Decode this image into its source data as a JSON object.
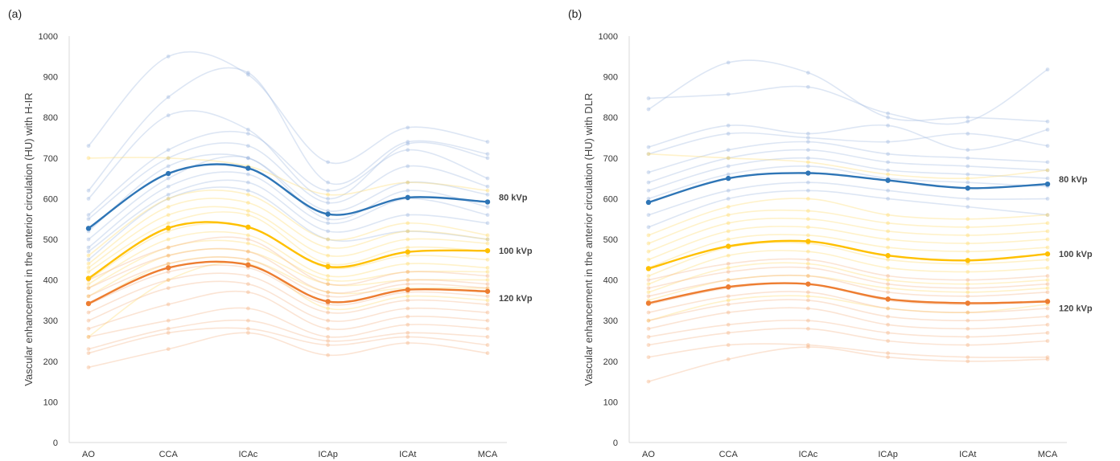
{
  "chart_data": [
    {
      "type": "line",
      "panel_label": "(a)",
      "ylabel": "Vascular enhancement in the anterior circulation (HU) with H-IR",
      "categories": [
        "AO",
        "CCA",
        "ICAc",
        "ICAp",
        "ICAt",
        "MCA"
      ],
      "ylim": [
        0,
        1000
      ],
      "yticks": [
        0,
        100,
        200,
        300,
        400,
        500,
        600,
        700,
        800,
        900,
        1000
      ],
      "grid": false,
      "series": [
        {
          "name": "80 kVp",
          "color": "#2e75b6",
          "values": [
            527,
            662,
            675,
            562,
            603,
            592
          ]
        },
        {
          "name": "100 kVp",
          "color": "#ffc000",
          "values": [
            404,
            528,
            530,
            433,
            469,
            472
          ]
        },
        {
          "name": "120 kVp",
          "color": "#ed7d31",
          "values": [
            342,
            430,
            437,
            347,
            376,
            372
          ]
        }
      ],
      "background_groups": [
        {
          "color": "#9db7df",
          "lines": [
            [
              730,
              950,
              905,
              690,
              775,
              740
            ],
            [
              620,
              850,
              910,
              640,
              740,
              710
            ],
            [
              600,
              805,
              770,
              600,
              735,
              700
            ],
            [
              560,
              720,
              760,
              620,
              720,
              650
            ],
            [
              550,
              700,
              730,
              590,
              680,
              630
            ],
            [
              520,
              680,
              700,
              570,
              640,
              610
            ],
            [
              500,
              650,
              700,
              550,
              620,
              580
            ],
            [
              480,
              630,
              660,
              540,
              600,
              560
            ],
            [
              470,
              610,
              640,
              520,
              560,
              540
            ],
            [
              450,
              600,
              620,
              500,
              520,
              500
            ]
          ]
        },
        {
          "color": "#ffd966",
          "lines": [
            [
              700,
              700,
              680,
              610,
              640,
              620
            ],
            [
              460,
              600,
              610,
              500,
              540,
              510
            ],
            [
              440,
              580,
              590,
              480,
              520,
              500
            ],
            [
              430,
              560,
              570,
              460,
              500,
              490
            ],
            [
              420,
              540,
              560,
              440,
              480,
              470
            ],
            [
              400,
              520,
              530,
              430,
              460,
              450
            ],
            [
              390,
              500,
              510,
              410,
              440,
              430
            ],
            [
              380,
              480,
              490,
              400,
              420,
              420
            ],
            [
              360,
              460,
              470,
              390,
              400,
              400
            ],
            [
              340,
              440,
              450,
              370,
              380,
              380
            ],
            [
              260,
              400,
              440,
              330,
              360,
              350
            ]
          ]
        },
        {
          "color": "#f4b183",
          "lines": [
            [
              400,
              480,
              500,
              390,
              420,
              410
            ],
            [
              380,
              460,
              470,
              370,
              400,
              390
            ],
            [
              360,
              440,
              450,
              360,
              390,
              380
            ],
            [
              340,
              420,
              430,
              340,
              370,
              360
            ],
            [
              320,
              400,
              410,
              320,
              350,
              340
            ],
            [
              300,
              380,
              390,
              300,
              330,
              320
            ],
            [
              280,
              340,
              370,
              280,
              310,
              300
            ],
            [
              260,
              300,
              330,
              260,
              290,
              280
            ],
            [
              230,
              280,
              300,
              250,
              270,
              260
            ],
            [
              220,
              270,
              280,
              240,
              260,
              240
            ],
            [
              185,
              230,
              270,
              215,
              245,
              220
            ]
          ]
        }
      ]
    },
    {
      "type": "line",
      "panel_label": "(b)",
      "ylabel": "Vascular enhancement in the anterior circulation (HU) with DLR",
      "categories": [
        "AO",
        "CCA",
        "ICAc",
        "ICAp",
        "ICAt",
        "MCA"
      ],
      "ylim": [
        0,
        1000
      ],
      "yticks": [
        0,
        100,
        200,
        300,
        400,
        500,
        600,
        700,
        800,
        900,
        1000
      ],
      "grid": false,
      "series": [
        {
          "name": "80 kVp",
          "color": "#2e75b6",
          "values": [
            591,
            650,
            663,
            645,
            626,
            636
          ]
        },
        {
          "name": "100 kVp",
          "color": "#ffc000",
          "values": [
            428,
            483,
            495,
            460,
            448,
            464
          ]
        },
        {
          "name": "120 kVp",
          "color": "#ed7d31",
          "values": [
            343,
            383,
            390,
            353,
            343,
            347
          ]
        }
      ],
      "background_groups": [
        {
          "color": "#9db7df",
          "lines": [
            [
              847,
              857,
              875,
              810,
              790,
              918
            ],
            [
              820,
              935,
              910,
              800,
              800,
              790
            ],
            [
              727,
              780,
              760,
              780,
              720,
              770
            ],
            [
              710,
              760,
              750,
              740,
              760,
              730
            ],
            [
              665,
              720,
              740,
              710,
              700,
              690
            ],
            [
              640,
              700,
              720,
              690,
              680,
              670
            ],
            [
              620,
              680,
              700,
              670,
              660,
              650
            ],
            [
              600,
              660,
              680,
              650,
              640,
              630
            ],
            [
              560,
              620,
              640,
              620,
              600,
              600
            ],
            [
              530,
              600,
              620,
              600,
              580,
              560
            ]
          ]
        },
        {
          "color": "#ffd966",
          "lines": [
            [
              710,
              700,
              690,
              660,
              650,
              670
            ],
            [
              510,
              580,
              600,
              560,
              550,
              560
            ],
            [
              490,
              560,
              570,
              540,
              530,
              540
            ],
            [
              470,
              540,
              550,
              520,
              510,
              520
            ],
            [
              450,
              520,
              530,
              500,
              490,
              500
            ],
            [
              430,
              500,
              510,
              480,
              470,
              480
            ],
            [
              410,
              480,
              490,
              450,
              440,
              450
            ],
            [
              390,
              460,
              470,
              430,
              420,
              430
            ],
            [
              370,
              430,
              440,
              400,
              390,
              400
            ],
            [
              350,
              400,
              410,
              380,
              370,
              380
            ],
            [
              300,
              350,
              360,
              330,
              320,
              340
            ]
          ]
        },
        {
          "color": "#f4b183",
          "lines": [
            [
              400,
              440,
              450,
              410,
              400,
              410
            ],
            [
              380,
              420,
              430,
              390,
              380,
              390
            ],
            [
              360,
              400,
              410,
              370,
              360,
              370
            ],
            [
              340,
              380,
              390,
              350,
              340,
              350
            ],
            [
              320,
              360,
              370,
              330,
              320,
              330
            ],
            [
              300,
              340,
              350,
              310,
              300,
              310
            ],
            [
              280,
              320,
              330,
              290,
              280,
              290
            ],
            [
              260,
              290,
              300,
              270,
              260,
              270
            ],
            [
              240,
              270,
              280,
              250,
              240,
              250
            ],
            [
              210,
              240,
              240,
              220,
              210,
              210
            ],
            [
              150,
              205,
              235,
              210,
              200,
              205
            ]
          ]
        }
      ]
    }
  ]
}
